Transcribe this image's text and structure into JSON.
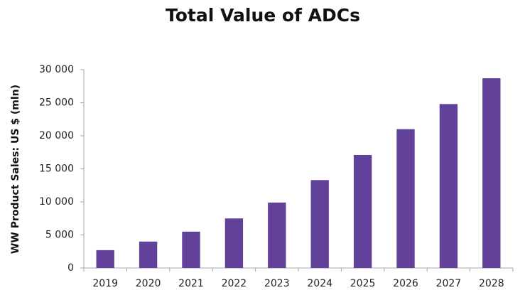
{
  "chart_data": {
    "type": "bar",
    "title": "Total Value of ADCs",
    "y_label": "WW Product Sales: US $ (mln)",
    "categories": [
      "2019",
      "2020",
      "2021",
      "2022",
      "2023",
      "2024",
      "2025",
      "2026",
      "2027",
      "2028"
    ],
    "values": [
      2700,
      4000,
      5500,
      7500,
      9900,
      13300,
      17100,
      21000,
      24800,
      28700
    ],
    "color": "#61419a",
    "ylim": [
      0,
      30000
    ],
    "yticks": [
      0,
      {
        "value": 5000,
        "label": "5 000"
      },
      {
        "value": 10000,
        "label": "10 000"
      },
      {
        "value": 15000,
        "label": "15 000"
      },
      {
        "value": 20000,
        "label": "20 000"
      },
      {
        "value": 25000,
        "label": "25 000"
      },
      {
        "value": 30000,
        "label": "30 000"
      }
    ],
    "grid": false
  }
}
